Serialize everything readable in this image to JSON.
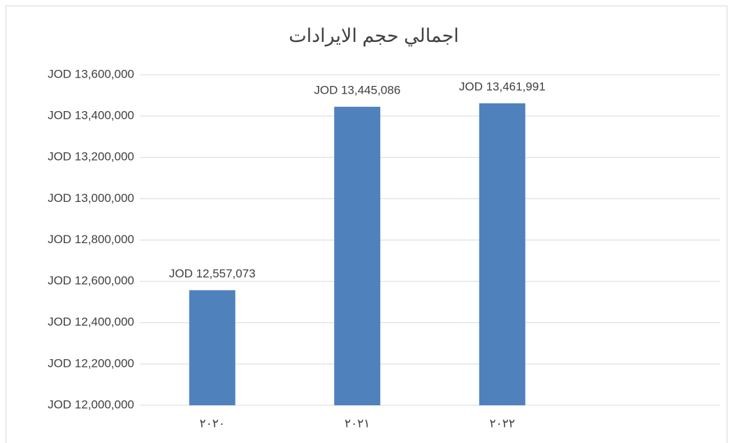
{
  "chart_data": {
    "type": "bar",
    "title": "اجمالي حجم الايرادات",
    "categories": [
      "٢٠٢٠",
      "٢٠٢١",
      "٢٠٢٢",
      null
    ],
    "values": [
      12557073,
      13445086,
      13461991,
      null
    ],
    "value_labels": [
      "JOD 12,557,073",
      "JOD 13,445,086",
      "JOD 13,461,991",
      null
    ],
    "color": "#4f81bd",
    "ylim": [
      12000000,
      13600000
    ],
    "yticks": [
      {
        "value": 12000000,
        "label": "JOD 12,000,000"
      },
      {
        "value": 12200000,
        "label": "JOD 12,200,000"
      },
      {
        "value": 12400000,
        "label": "JOD 12,400,000"
      },
      {
        "value": 12600000,
        "label": "JOD 12,600,000"
      },
      {
        "value": 12800000,
        "label": "JOD 12,800,000"
      },
      {
        "value": 13000000,
        "label": "JOD 13,000,000"
      },
      {
        "value": 13200000,
        "label": "JOD 13,200,000"
      },
      {
        "value": 13400000,
        "label": "JOD 13,400,000"
      },
      {
        "value": 13600000,
        "label": "JOD 13,600,000"
      }
    ],
    "grid": true
  }
}
